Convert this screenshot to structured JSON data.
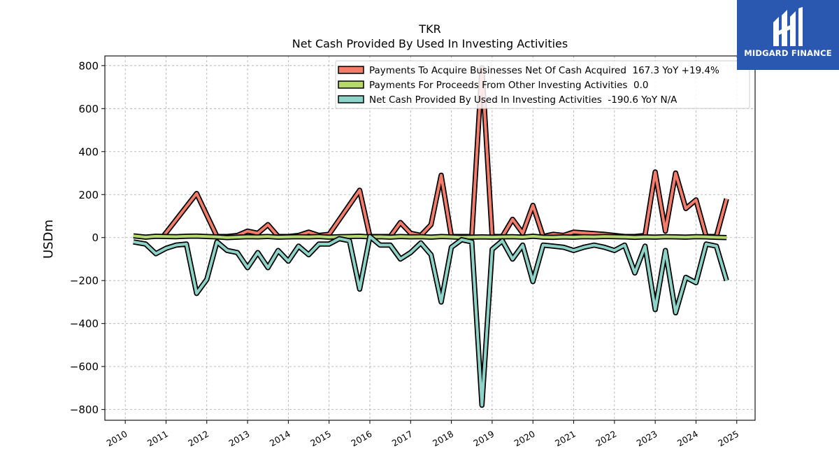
{
  "logo": {
    "text": "MIDGARD FINANCE",
    "icon": "midgard-m-icon",
    "background": "#2a58b0"
  },
  "chart_data": {
    "type": "line",
    "title": "TKR",
    "subtitle": "Net Cash Provided By Used In Investing Activities",
    "ylabel": "USDm",
    "xlabel": "",
    "ylim": [
      -850,
      845
    ],
    "xlim": [
      2009.5,
      2025.45
    ],
    "yticks": [
      800,
      600,
      400,
      200,
      0,
      -200,
      -400,
      -600,
      -800
    ],
    "xticks": [
      2010,
      2011,
      2012,
      2013,
      2014,
      2015,
      2016,
      2017,
      2018,
      2019,
      2020,
      2021,
      2022,
      2023,
      2024,
      2025
    ],
    "grid": true,
    "legend_position": "top-right",
    "series": [
      {
        "name": "Payments To Acquire Businesses Net Of Cash Acquired  167.3 YoY +19.4%",
        "color": "#f47c6b",
        "x": [
          2010.95,
          2011.75,
          2012.25,
          2012.5,
          2012.75,
          2013.0,
          2013.25,
          2013.5,
          2013.75,
          2014.0,
          2014.25,
          2014.5,
          2014.75,
          2015.0,
          2015.75,
          2016.0,
          2016.25,
          2016.5,
          2016.75,
          2017.0,
          2017.25,
          2017.5,
          2017.75,
          2018.0,
          2018.25,
          2018.5,
          2018.75,
          2019.0,
          2019.25,
          2019.5,
          2019.75,
          2020.0,
          2020.25,
          2020.5,
          2020.75,
          2021.0,
          2021.75,
          2022.0,
          2022.25,
          2022.5,
          2022.75,
          2023.0,
          2023.25,
          2023.5,
          2023.75,
          2024.0,
          2024.25,
          2024.5,
          2024.75
        ],
        "values": [
          10,
          205,
          5,
          5,
          10,
          30,
          20,
          60,
          5,
          5,
          10,
          25,
          10,
          15,
          220,
          5,
          5,
          5,
          70,
          20,
          10,
          60,
          290,
          5,
          5,
          5,
          790,
          5,
          5,
          85,
          20,
          150,
          5,
          15,
          10,
          25,
          15,
          10,
          5,
          5,
          10,
          305,
          30,
          300,
          135,
          175,
          5,
          5,
          180
        ]
      },
      {
        "name": "Payments For Proceeds From Other Investing Activities  0.0",
        "color": "#b5d96e",
        "x": [
          2010.2,
          2010.5,
          2010.75,
          2011.0,
          2011.25,
          2011.5,
          2011.75,
          2012.0,
          2012.25,
          2012.5,
          2012.75,
          2013.0,
          2013.25,
          2013.5,
          2013.75,
          2014.0,
          2014.25,
          2014.5,
          2014.75,
          2015.0,
          2015.25,
          2015.5,
          2015.75,
          2016.0,
          2016.25,
          2016.5,
          2016.75,
          2017.0,
          2017.25,
          2017.5,
          2017.75,
          2018.0,
          2018.25,
          2018.5,
          2018.75,
          2019.0,
          2019.25,
          2019.5,
          2019.75,
          2020.0,
          2020.25,
          2020.5,
          2020.75,
          2021.0,
          2021.25,
          2021.5,
          2021.75,
          2022.0,
          2022.25,
          2022.5,
          2022.75,
          2023.0,
          2023.25,
          2023.5,
          2023.75,
          2024.0,
          2024.25,
          2024.5,
          2024.75
        ],
        "values": [
          8,
          2,
          6,
          5,
          4,
          6,
          7,
          5,
          3,
          0,
          2,
          4,
          3,
          5,
          2,
          3,
          4,
          3,
          5,
          2,
          4,
          5,
          6,
          3,
          4,
          2,
          5,
          3,
          4,
          2,
          5,
          3,
          1,
          2,
          3,
          2,
          3,
          4,
          2,
          6,
          2,
          1,
          3,
          2,
          4,
          3,
          5,
          4,
          3,
          1,
          3,
          2,
          4,
          3,
          2,
          4,
          3,
          1,
          0
        ]
      },
      {
        "name": "Net Cash Provided By Used In Investing Activities  -190.6 YoY N/A",
        "color": "#8ed3c7",
        "x": [
          2010.2,
          2010.5,
          2010.75,
          2011.0,
          2011.25,
          2011.5,
          2011.75,
          2012.0,
          2012.25,
          2012.5,
          2012.75,
          2013.0,
          2013.25,
          2013.5,
          2013.75,
          2014.0,
          2014.25,
          2014.5,
          2014.75,
          2015.0,
          2015.25,
          2015.5,
          2015.75,
          2016.0,
          2016.25,
          2016.5,
          2016.75,
          2017.0,
          2017.25,
          2017.5,
          2017.75,
          2018.0,
          2018.25,
          2018.5,
          2018.75,
          2019.0,
          2019.25,
          2019.5,
          2019.75,
          2020.0,
          2020.25,
          2020.5,
          2020.75,
          2021.0,
          2021.25,
          2021.5,
          2021.75,
          2022.0,
          2022.25,
          2022.5,
          2022.75,
          2023.0,
          2023.25,
          2023.5,
          2023.75,
          2024.0,
          2024.25,
          2024.5,
          2024.75
        ],
        "values": [
          -20,
          -30,
          -75,
          -50,
          -35,
          -30,
          -260,
          -195,
          -20,
          -60,
          -70,
          -140,
          -70,
          -140,
          -60,
          -110,
          -40,
          -80,
          -30,
          -30,
          -5,
          -15,
          -240,
          5,
          -35,
          -35,
          -100,
          -70,
          -25,
          -80,
          -300,
          -45,
          -10,
          -20,
          -780,
          -55,
          -15,
          -100,
          -35,
          -205,
          -35,
          -40,
          -45,
          -60,
          -45,
          -35,
          -45,
          -60,
          -35,
          -165,
          -40,
          -335,
          -60,
          -350,
          -185,
          -210,
          -30,
          -40,
          -200
        ]
      }
    ]
  }
}
